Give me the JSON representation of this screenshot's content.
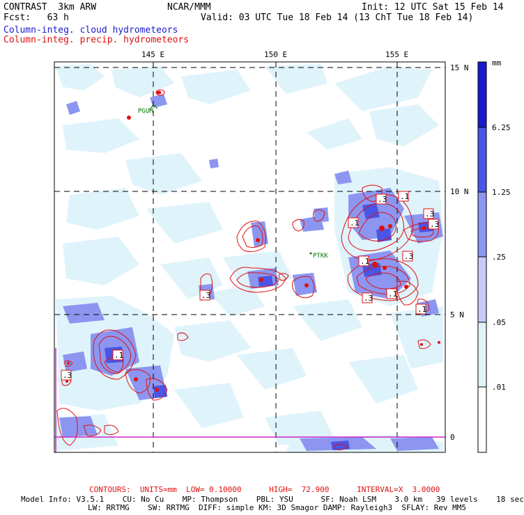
{
  "header": {
    "experiment": "CONTRAST  3km ARW",
    "center": "NCAR/MMM",
    "init": "Init: 12 UTC Sat 15 Feb 14",
    "forecast": "Fcst:   63 h",
    "valid": "Valid: 03 UTC Tue 18 Feb 14 (13 ChT Tue 18 Feb 14)",
    "field_cloud": "Column-integ. cloud hydrometeors",
    "field_precip": "Column-integ. precip. hydrometeors"
  },
  "map": {
    "lon_labels": [
      "145 E",
      "150 E",
      "155 E"
    ],
    "lat_labels": [
      "15 N",
      "10 N",
      "5 N",
      "0"
    ],
    "stations": [
      "PGUM",
      "PTKK"
    ],
    "contour_labels": [
      ".3",
      ".1",
      ".1",
      ".3",
      ".1",
      ".3",
      ".1",
      ".1",
      ".3",
      ".3",
      ".1",
      ".3",
      ".3"
    ]
  },
  "colorbar": {
    "unit": "mm",
    "levels": [
      "6.25",
      "1.25",
      ".25",
      ".05",
      ".01"
    ],
    "colors": [
      "#1a1acc",
      "#4a55e6",
      "#8c96f0",
      "#c6ccf8",
      "#dff3fb",
      "#ffffff"
    ]
  },
  "footer": {
    "contours": "CONTOURS:  UNITS=mm  LOW= 0.10000      HIGH=  72.900      INTERVAL=X  3.0000",
    "model_line1": "Model Info: V3.5.1    CU: No Cu    MP: Thompson    PBL: YSU      SF: Noah LSM    3.0 km   39 levels    18 sec",
    "model_line2": "LW: RRTMG    SW: RRTMG  DIFF: simple KM: 3D Smagor DAMP: Rayleigh3  SFLAY: Rev MM5"
  }
}
